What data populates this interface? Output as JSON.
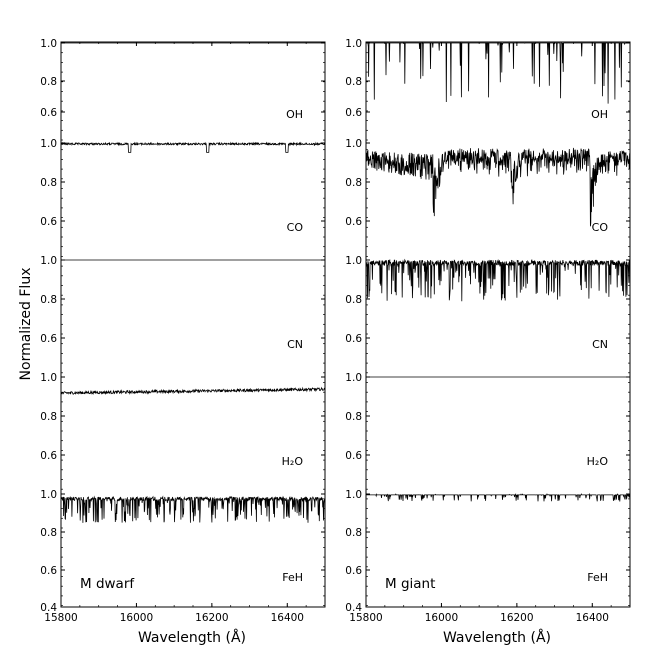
{
  "figure": {
    "ylabel": "Normalized Flux",
    "xlabel": "Wavelength (Å)"
  },
  "chart_data": [
    {
      "type": "line",
      "panel_label": "M dwarf",
      "xlabel": "Wavelength (Å)",
      "ylabel": "Normalized Flux",
      "xlim": [
        15800,
        16500
      ],
      "xticks": [
        15800,
        16000,
        16200,
        16400
      ],
      "ylim": [
        0.4,
        1.9
      ],
      "yticks": [
        0.4,
        0.6,
        0.8,
        1.0
      ],
      "series": [
        {
          "name": "OH",
          "continuum": 1.0,
          "region": [
            1.0,
            1.0
          ]
        },
        {
          "name": "CO",
          "continuum": 1.0,
          "region": [
            0.94,
            1.0
          ]
        },
        {
          "name": "CN",
          "continuum": 1.0,
          "region": [
            1.0,
            1.0
          ]
        },
        {
          "name": "H₂O",
          "continuum": 0.93,
          "region": [
            0.9,
            0.95
          ]
        },
        {
          "name": "FeH",
          "continuum": 0.98,
          "region": [
            0.82,
            1.0
          ]
        }
      ]
    },
    {
      "type": "line",
      "panel_label": "M giant",
      "xlabel": "Wavelength (Å)",
      "ylabel": "Normalized Flux",
      "xlim": [
        15800,
        16500
      ],
      "xticks": [
        15800,
        16000,
        16200,
        16400
      ],
      "ylim": [
        0.4,
        1.9
      ],
      "yticks": [
        0.4,
        0.6,
        0.8,
        1.0
      ],
      "series": [
        {
          "name": "OH",
          "continuum": 1.0,
          "region": [
            0.67,
            1.0
          ]
        },
        {
          "name": "CO",
          "continuum": 0.95,
          "region": [
            0.47,
            1.0
          ]
        },
        {
          "name": "CN",
          "continuum": 0.98,
          "region": [
            0.78,
            1.0
          ]
        },
        {
          "name": "H₂O",
          "continuum": 1.0,
          "region": [
            1.0,
            1.0
          ]
        },
        {
          "name": "FeH",
          "continuum": 0.99,
          "region": [
            0.95,
            1.0
          ]
        }
      ]
    }
  ]
}
